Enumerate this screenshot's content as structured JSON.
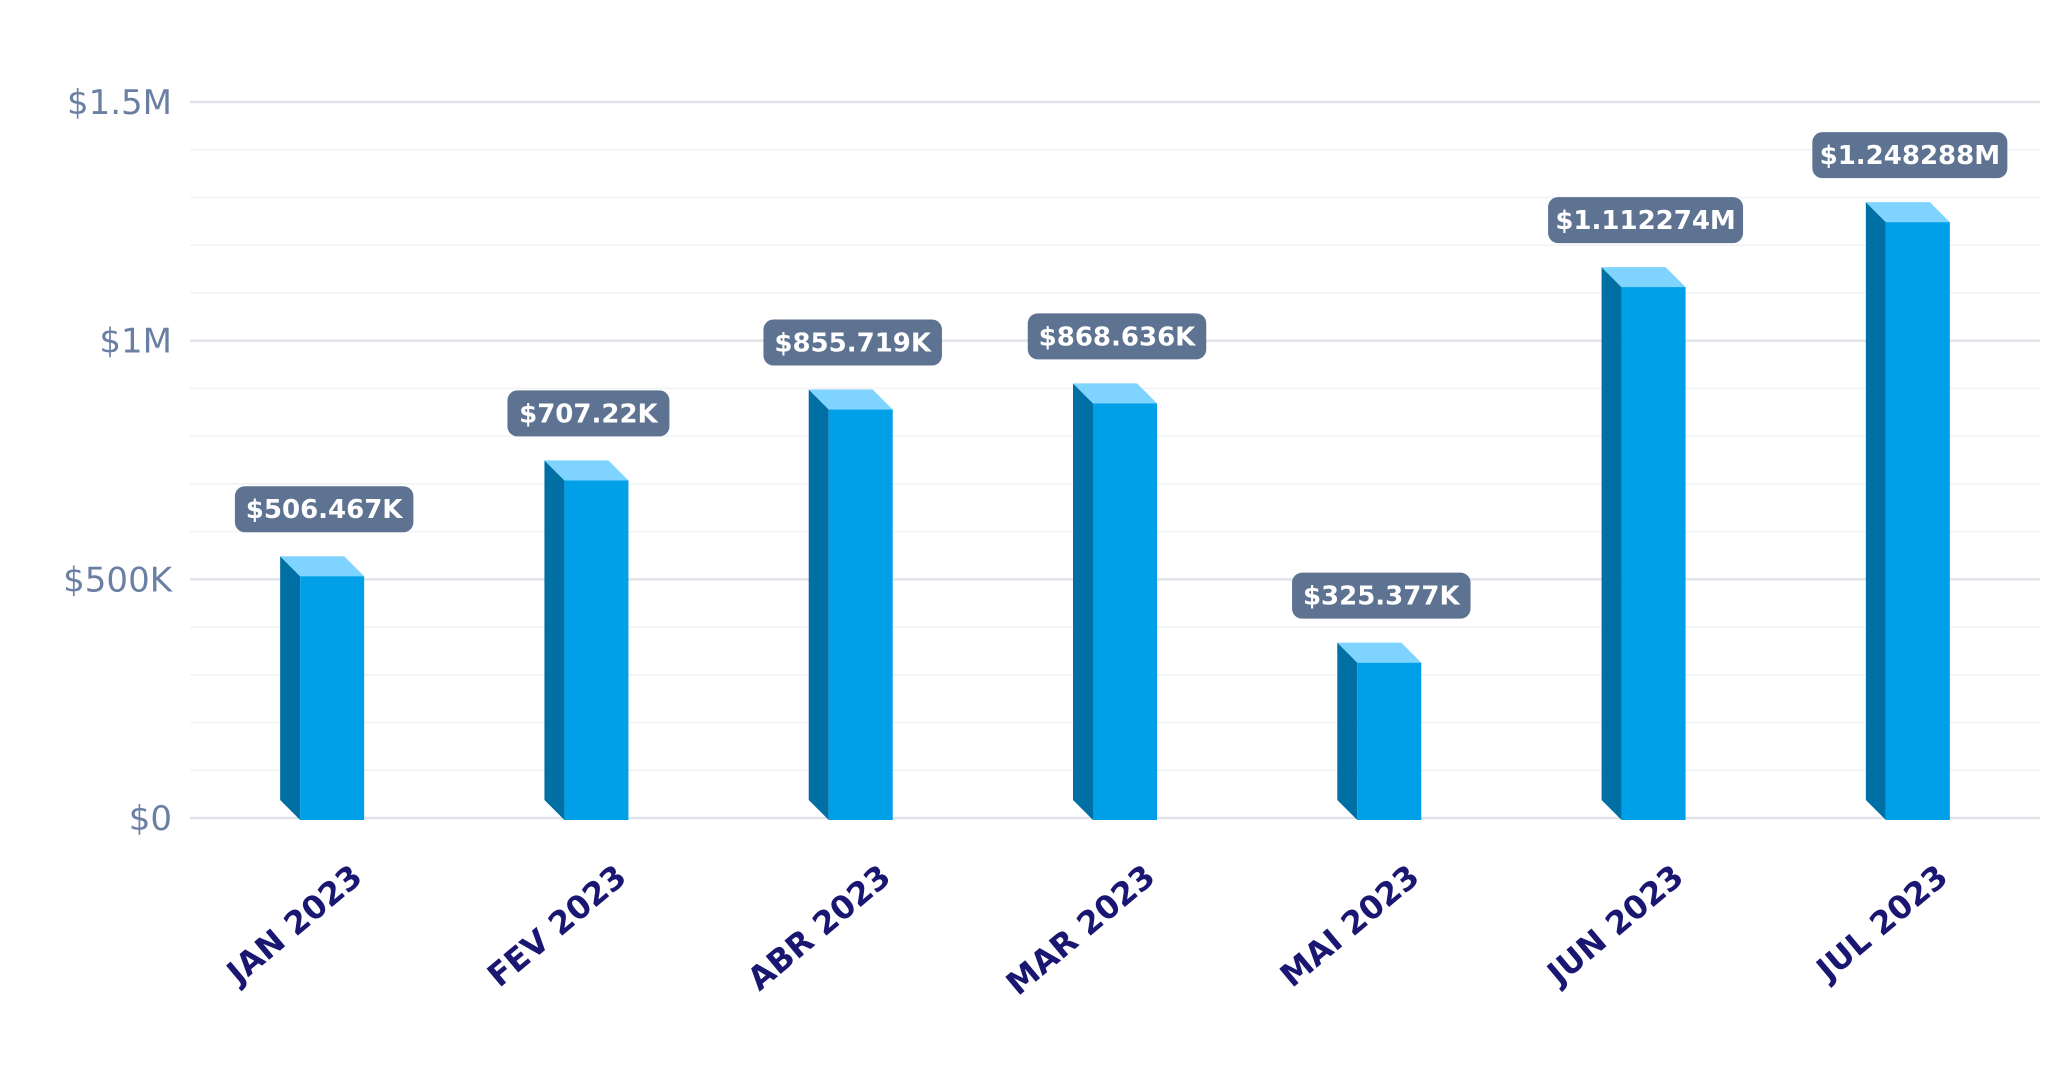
{
  "chart_data": {
    "type": "bar",
    "title": "",
    "xlabel": "",
    "ylabel": "",
    "categories": [
      "JAN 2023",
      "FEV 2023",
      "ABR 2023",
      "MAR 2023",
      "MAI 2023",
      "JUN 2023",
      "JUL 2023"
    ],
    "values": [
      506467,
      707220,
      855719,
      868636,
      325377,
      1112274,
      1248288
    ],
    "data_labels": [
      "$506.467K",
      "$707.22K",
      "$855.719K",
      "$868.636K",
      "$325.377K",
      "$1.112274M",
      "$1.248288M"
    ],
    "ylim": [
      0,
      1500000
    ],
    "yticks": [
      0,
      500000,
      1000000,
      1500000
    ],
    "ytick_labels": [
      "$0",
      "$500K",
      "$1M",
      "$1.5M"
    ],
    "grid": true,
    "legend": "none",
    "colors": {
      "bar_front": "#00a0e9",
      "bar_side": "#006fa3",
      "bar_top": "#7fd4ff",
      "label_bg": "#5e7391",
      "label_text": "#ffffff",
      "xtick": "#1a1772",
      "ytick": "#6b7fa3",
      "grid": "#e0e3ea",
      "grid_minor": "#f1f2f5"
    }
  }
}
